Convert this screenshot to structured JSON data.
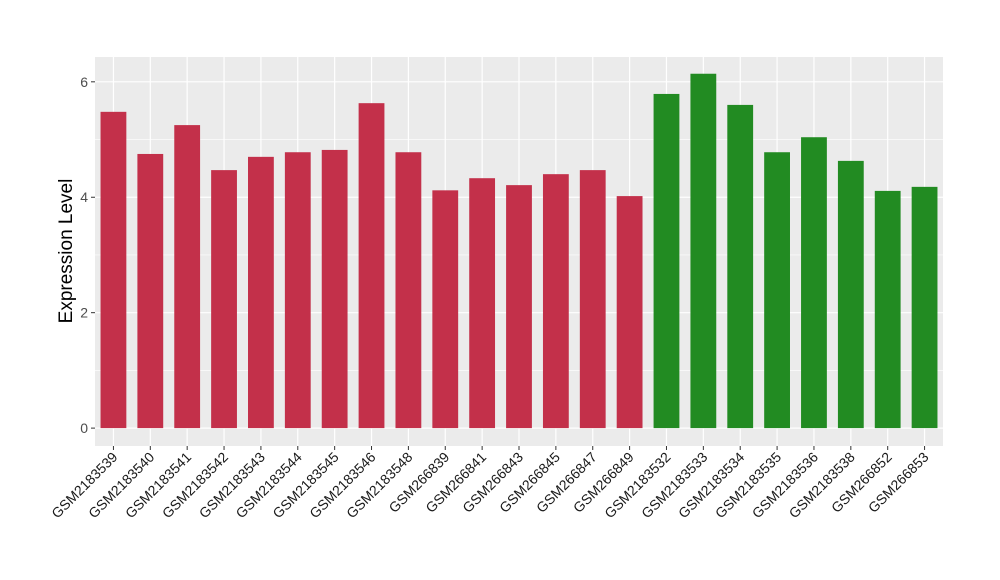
{
  "chart_data": {
    "type": "bar",
    "title": "",
    "xlabel": "",
    "ylabel": "Expression Level",
    "ylim": [
      -0.31,
      6.43
    ],
    "yticks": [
      0,
      2,
      4,
      6
    ],
    "grid": true,
    "legend": "none",
    "categories": [
      "GSM2183539",
      "GSM2183540",
      "GSM2183541",
      "GSM2183542",
      "GSM2183543",
      "GSM2183544",
      "GSM2183545",
      "GSM2183546",
      "GSM2183548",
      "GSM266839",
      "GSM266841",
      "GSM266843",
      "GSM266845",
      "GSM266847",
      "GSM266849",
      "GSM2183532",
      "GSM2183533",
      "GSM2183534",
      "GSM2183535",
      "GSM2183536",
      "GSM2183538",
      "GSM266852",
      "GSM266853"
    ],
    "values": [
      5.48,
      4.75,
      5.25,
      4.47,
      4.7,
      4.78,
      4.82,
      5.63,
      4.78,
      4.12,
      4.33,
      4.21,
      4.4,
      4.47,
      4.02,
      5.79,
      6.14,
      5.6,
      4.78,
      5.04,
      4.63,
      4.11,
      4.18
    ],
    "group_colors": [
      "#C3304A",
      "#C3304A",
      "#C3304A",
      "#C3304A",
      "#C3304A",
      "#C3304A",
      "#C3304A",
      "#C3304A",
      "#C3304A",
      "#C3304A",
      "#C3304A",
      "#C3304A",
      "#C3304A",
      "#C3304A",
      "#C3304A",
      "#228B22",
      "#228B22",
      "#228B22",
      "#228B22",
      "#228B22",
      "#228B22",
      "#228B22",
      "#228B22"
    ],
    "panel_background": "#EBEBEB"
  }
}
